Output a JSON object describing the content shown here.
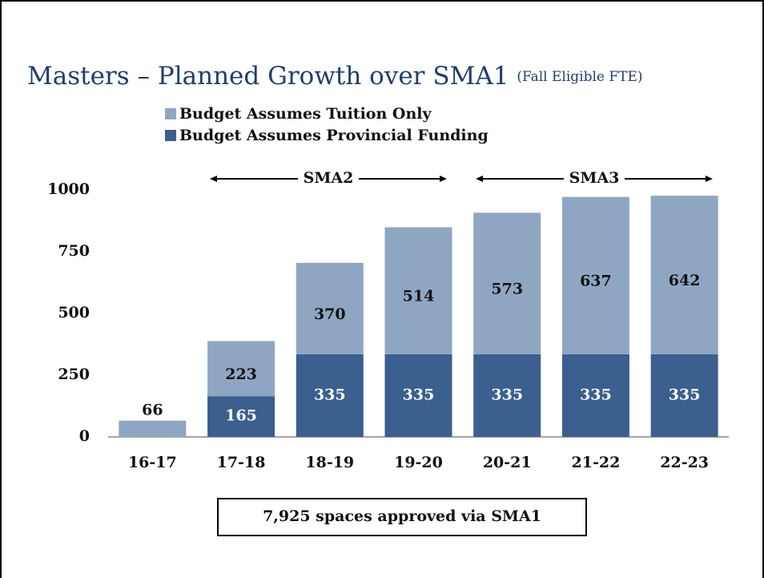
{
  "chart_data": {
    "type": "stacked-bar",
    "title": "Masters – Planned Growth over SMA1",
    "subtitle": "(Fall Eligible FTE)",
    "categories": [
      "16-17",
      "17-18",
      "18-19",
      "19-20",
      "20-21",
      "21-22",
      "22-23"
    ],
    "series": [
      {
        "name": "Budget Assumes Provincial Funding",
        "color": "#3b5f8e",
        "values": [
          null,
          165,
          335,
          335,
          335,
          335,
          335
        ]
      },
      {
        "name": "Budget Assumes Tuition Only",
        "color": "#8fa6c3",
        "values": [
          66,
          223,
          370,
          514,
          573,
          637,
          642
        ]
      }
    ],
    "ylim": [
      0,
      1000
    ],
    "yticks": [
      0,
      250,
      500,
      750,
      1000
    ],
    "annotations": [
      "SMA2",
      "SMA3"
    ],
    "note": "7,925 spaces approved via SMA1"
  }
}
